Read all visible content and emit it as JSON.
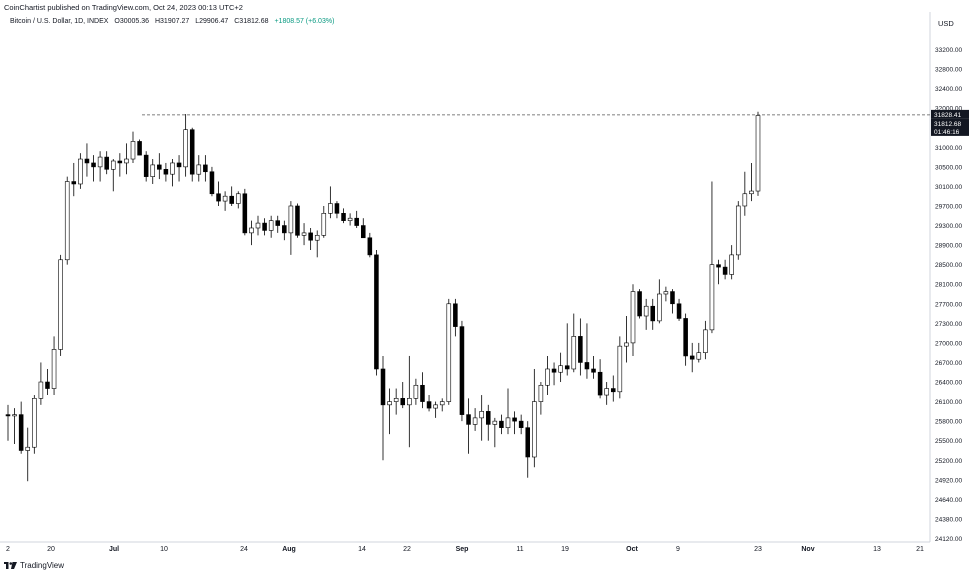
{
  "header": {
    "publisher": "CoinChartist published on TradingView.com, Oct 24, 2023 00:13 UTC+2",
    "symbol": "Bitcoin / U.S. Dollar, 1D, INDEX",
    "open": "O30005.36",
    "high": "H31907.27",
    "low": "L29906.47",
    "close": "C31812.68",
    "change": "+1808.57 (+6.03%)",
    "currency": "USD"
  },
  "footer": {
    "brand": "TradingView",
    "logo_icon": "tradingview-logo-icon"
  },
  "colors": {
    "up_fill": "#ffffff",
    "down_fill": "#000000",
    "wick": "#000000",
    "grid": "#f0f3fa",
    "axis_text": "#131722",
    "price_box": "#131722"
  },
  "chart_data": {
    "type": "candlestick",
    "y_ticks": [
      "24120.00",
      "24380.00",
      "24640.00",
      "24920.00",
      "25200.00",
      "25500.00",
      "25800.00",
      "26100.00",
      "26400.00",
      "26700.00",
      "27000.00",
      "27300.00",
      "27700.00",
      "28100.00",
      "28500.00",
      "28900.00",
      "29300.00",
      "29700.00",
      "30100.00",
      "30500.00",
      "31000.00",
      "31500.00",
      "32000.00",
      "32400.00",
      "32800.00",
      "33200.00"
    ],
    "x_ticks": [
      "2",
      "20",
      "Jul",
      "10",
      "24",
      "Aug",
      "14",
      "22",
      "Sep",
      "11",
      "19",
      "Oct",
      "9",
      "23",
      "Nov",
      "13",
      "21"
    ],
    "price_labels": {
      "high": "31828.41",
      "last": "31812.68",
      "countdown": "01:46:16"
    },
    "reference_line": {
      "label": "31828.41",
      "value": 31828.41,
      "style": "dashed"
    },
    "candles": [
      {
        "o": 25900,
        "h": 26050,
        "l": 25500,
        "c": 25880
      },
      {
        "o": 25880,
        "h": 26000,
        "l": 25450,
        "c": 25900
      },
      {
        "o": 25900,
        "h": 26100,
        "l": 25300,
        "c": 25350
      },
      {
        "o": 25350,
        "h": 25700,
        "l": 24900,
        "c": 25400
      },
      {
        "o": 25400,
        "h": 26200,
        "l": 25300,
        "c": 26150
      },
      {
        "o": 26150,
        "h": 26700,
        "l": 26050,
        "c": 26400
      },
      {
        "o": 26400,
        "h": 26600,
        "l": 26200,
        "c": 26300
      },
      {
        "o": 26300,
        "h": 27100,
        "l": 26200,
        "c": 26900
      },
      {
        "o": 26900,
        "h": 28700,
        "l": 26800,
        "c": 28600
      },
      {
        "o": 28600,
        "h": 30300,
        "l": 28500,
        "c": 30200
      },
      {
        "o": 30200,
        "h": 30600,
        "l": 29900,
        "c": 30150
      },
      {
        "o": 30150,
        "h": 30850,
        "l": 30050,
        "c": 30700
      },
      {
        "o": 30700,
        "h": 31100,
        "l": 30300,
        "c": 30600
      },
      {
        "o": 30600,
        "h": 30800,
        "l": 30200,
        "c": 30500
      },
      {
        "o": 30500,
        "h": 30900,
        "l": 30200,
        "c": 30750
      },
      {
        "o": 30750,
        "h": 30900,
        "l": 30350,
        "c": 30450
      },
      {
        "o": 30450,
        "h": 30700,
        "l": 30000,
        "c": 30650
      },
      {
        "o": 30650,
        "h": 30850,
        "l": 30300,
        "c": 30600
      },
      {
        "o": 30600,
        "h": 31100,
        "l": 30350,
        "c": 30700
      },
      {
        "o": 30700,
        "h": 31400,
        "l": 30600,
        "c": 31150
      },
      {
        "o": 31150,
        "h": 31200,
        "l": 30800,
        "c": 30800
      },
      {
        "o": 30800,
        "h": 30900,
        "l": 30200,
        "c": 30300
      },
      {
        "o": 30300,
        "h": 30700,
        "l": 30150,
        "c": 30550
      },
      {
        "o": 30550,
        "h": 30850,
        "l": 30250,
        "c": 30450
      },
      {
        "o": 30450,
        "h": 30600,
        "l": 30200,
        "c": 30350
      },
      {
        "o": 30350,
        "h": 30700,
        "l": 30100,
        "c": 30600
      },
      {
        "o": 30600,
        "h": 30800,
        "l": 30200,
        "c": 30500
      },
      {
        "o": 30500,
        "h": 31850,
        "l": 30300,
        "c": 31450
      },
      {
        "o": 31450,
        "h": 31500,
        "l": 30200,
        "c": 30350
      },
      {
        "o": 30350,
        "h": 30800,
        "l": 30200,
        "c": 30550
      },
      {
        "o": 30550,
        "h": 30800,
        "l": 30200,
        "c": 30400
      },
      {
        "o": 30400,
        "h": 30500,
        "l": 29900,
        "c": 29950
      },
      {
        "o": 29950,
        "h": 30200,
        "l": 29700,
        "c": 29800
      },
      {
        "o": 29800,
        "h": 30000,
        "l": 29600,
        "c": 29900
      },
      {
        "o": 29900,
        "h": 30100,
        "l": 29700,
        "c": 29750
      },
      {
        "o": 29750,
        "h": 30000,
        "l": 29650,
        "c": 29950
      },
      {
        "o": 29950,
        "h": 30050,
        "l": 29100,
        "c": 29150
      },
      {
        "o": 29150,
        "h": 29400,
        "l": 28900,
        "c": 29250
      },
      {
        "o": 29250,
        "h": 29500,
        "l": 29100,
        "c": 29350
      },
      {
        "o": 29350,
        "h": 29450,
        "l": 29100,
        "c": 29200
      },
      {
        "o": 29200,
        "h": 29500,
        "l": 29050,
        "c": 29400
      },
      {
        "o": 29400,
        "h": 29500,
        "l": 29150,
        "c": 29300
      },
      {
        "o": 29300,
        "h": 29400,
        "l": 29000,
        "c": 29150
      },
      {
        "o": 29150,
        "h": 29800,
        "l": 28700,
        "c": 29700
      },
      {
        "o": 29700,
        "h": 29750,
        "l": 29050,
        "c": 29100
      },
      {
        "o": 29100,
        "h": 29350,
        "l": 28900,
        "c": 29150
      },
      {
        "o": 29150,
        "h": 29250,
        "l": 28800,
        "c": 29000
      },
      {
        "o": 29000,
        "h": 29200,
        "l": 28650,
        "c": 29100
      },
      {
        "o": 29100,
        "h": 29700,
        "l": 29050,
        "c": 29550
      },
      {
        "o": 29550,
        "h": 30100,
        "l": 29450,
        "c": 29750
      },
      {
        "o": 29750,
        "h": 29800,
        "l": 29450,
        "c": 29550
      },
      {
        "o": 29550,
        "h": 29650,
        "l": 29350,
        "c": 29400
      },
      {
        "o": 29400,
        "h": 29550,
        "l": 29300,
        "c": 29450
      },
      {
        "o": 29450,
        "h": 29600,
        "l": 29250,
        "c": 29300
      },
      {
        "o": 29300,
        "h": 29450,
        "l": 29050,
        "c": 29050
      },
      {
        "o": 29050,
        "h": 29150,
        "l": 28650,
        "c": 28700
      },
      {
        "o": 28700,
        "h": 28800,
        "l": 26500,
        "c": 26600
      },
      {
        "o": 26600,
        "h": 26800,
        "l": 25200,
        "c": 26050
      },
      {
        "o": 26050,
        "h": 26300,
        "l": 25600,
        "c": 26100
      },
      {
        "o": 26100,
        "h": 26300,
        "l": 25900,
        "c": 26150
      },
      {
        "o": 26150,
        "h": 26400,
        "l": 26000,
        "c": 26050
      },
      {
        "o": 26050,
        "h": 26800,
        "l": 25400,
        "c": 26150
      },
      {
        "o": 26150,
        "h": 26450,
        "l": 26050,
        "c": 26350
      },
      {
        "o": 26350,
        "h": 26550,
        "l": 26000,
        "c": 26100
      },
      {
        "o": 26100,
        "h": 26200,
        "l": 25950,
        "c": 26000
      },
      {
        "o": 26000,
        "h": 26100,
        "l": 25850,
        "c": 26050
      },
      {
        "o": 26050,
        "h": 26150,
        "l": 25950,
        "c": 26100
      },
      {
        "o": 26100,
        "h": 27800,
        "l": 26050,
        "c": 27700
      },
      {
        "o": 27700,
        "h": 27800,
        "l": 27100,
        "c": 27250
      },
      {
        "o": 27250,
        "h": 27350,
        "l": 25800,
        "c": 25900
      },
      {
        "o": 25900,
        "h": 26150,
        "l": 25300,
        "c": 25750
      },
      {
        "o": 25750,
        "h": 26000,
        "l": 25650,
        "c": 25850
      },
      {
        "o": 25850,
        "h": 26200,
        "l": 25500,
        "c": 25950
      },
      {
        "o": 25950,
        "h": 26050,
        "l": 25500,
        "c": 25750
      },
      {
        "o": 25750,
        "h": 25850,
        "l": 25400,
        "c": 25800
      },
      {
        "o": 25800,
        "h": 25900,
        "l": 25600,
        "c": 25700
      },
      {
        "o": 25700,
        "h": 26300,
        "l": 25600,
        "c": 25850
      },
      {
        "o": 25850,
        "h": 25950,
        "l": 25600,
        "c": 25800
      },
      {
        "o": 25800,
        "h": 25900,
        "l": 25600,
        "c": 25700
      },
      {
        "o": 25700,
        "h": 25800,
        "l": 24950,
        "c": 25250
      },
      {
        "o": 25250,
        "h": 26600,
        "l": 25100,
        "c": 26100
      },
      {
        "o": 26100,
        "h": 26400,
        "l": 25900,
        "c": 26350
      },
      {
        "o": 26350,
        "h": 26800,
        "l": 26200,
        "c": 26600
      },
      {
        "o": 26600,
        "h": 26700,
        "l": 26350,
        "c": 26550
      },
      {
        "o": 26550,
        "h": 26850,
        "l": 26400,
        "c": 26650
      },
      {
        "o": 26650,
        "h": 27300,
        "l": 26500,
        "c": 26600
      },
      {
        "o": 26600,
        "h": 27500,
        "l": 26550,
        "c": 27100
      },
      {
        "o": 27100,
        "h": 27400,
        "l": 26500,
        "c": 26700
      },
      {
        "o": 26700,
        "h": 27300,
        "l": 26450,
        "c": 26600
      },
      {
        "o": 26600,
        "h": 26800,
        "l": 26450,
        "c": 26550
      },
      {
        "o": 26550,
        "h": 26750,
        "l": 26150,
        "c": 26200
      },
      {
        "o": 26200,
        "h": 26400,
        "l": 26050,
        "c": 26300
      },
      {
        "o": 26300,
        "h": 26500,
        "l": 26100,
        "c": 26250
      },
      {
        "o": 26250,
        "h": 27100,
        "l": 26150,
        "c": 26950
      },
      {
        "o": 26950,
        "h": 27450,
        "l": 26700,
        "c": 27000
      },
      {
        "o": 27000,
        "h": 28100,
        "l": 26800,
        "c": 27950
      },
      {
        "o": 27950,
        "h": 28000,
        "l": 27400,
        "c": 27450
      },
      {
        "o": 27450,
        "h": 27800,
        "l": 27200,
        "c": 27650
      },
      {
        "o": 27650,
        "h": 27800,
        "l": 27200,
        "c": 27350
      },
      {
        "o": 27350,
        "h": 28200,
        "l": 27300,
        "c": 27900
      },
      {
        "o": 27900,
        "h": 28050,
        "l": 27750,
        "c": 27950
      },
      {
        "o": 27950,
        "h": 28000,
        "l": 27500,
        "c": 27700
      },
      {
        "o": 27700,
        "h": 27800,
        "l": 27350,
        "c": 27400
      },
      {
        "o": 27400,
        "h": 27500,
        "l": 26650,
        "c": 26800
      },
      {
        "o": 26800,
        "h": 27000,
        "l": 26550,
        "c": 26750
      },
      {
        "o": 26750,
        "h": 27000,
        "l": 26700,
        "c": 26850
      },
      {
        "o": 26850,
        "h": 27350,
        "l": 26750,
        "c": 27200
      },
      {
        "o": 27200,
        "h": 30200,
        "l": 27150,
        "c": 28500
      },
      {
        "o": 28500,
        "h": 28600,
        "l": 28100,
        "c": 28450
      },
      {
        "o": 28450,
        "h": 28600,
        "l": 28200,
        "c": 28300
      },
      {
        "o": 28300,
        "h": 28900,
        "l": 28200,
        "c": 28700
      },
      {
        "o": 28700,
        "h": 29800,
        "l": 28600,
        "c": 29700
      },
      {
        "o": 29700,
        "h": 30400,
        "l": 29500,
        "c": 29950
      },
      {
        "o": 29950,
        "h": 30600,
        "l": 29800,
        "c": 30005
      },
      {
        "o": 30005.36,
        "h": 31907.27,
        "l": 29906.47,
        "c": 31812.68
      }
    ],
    "title": "",
    "xlabel": "",
    "ylabel": ""
  }
}
